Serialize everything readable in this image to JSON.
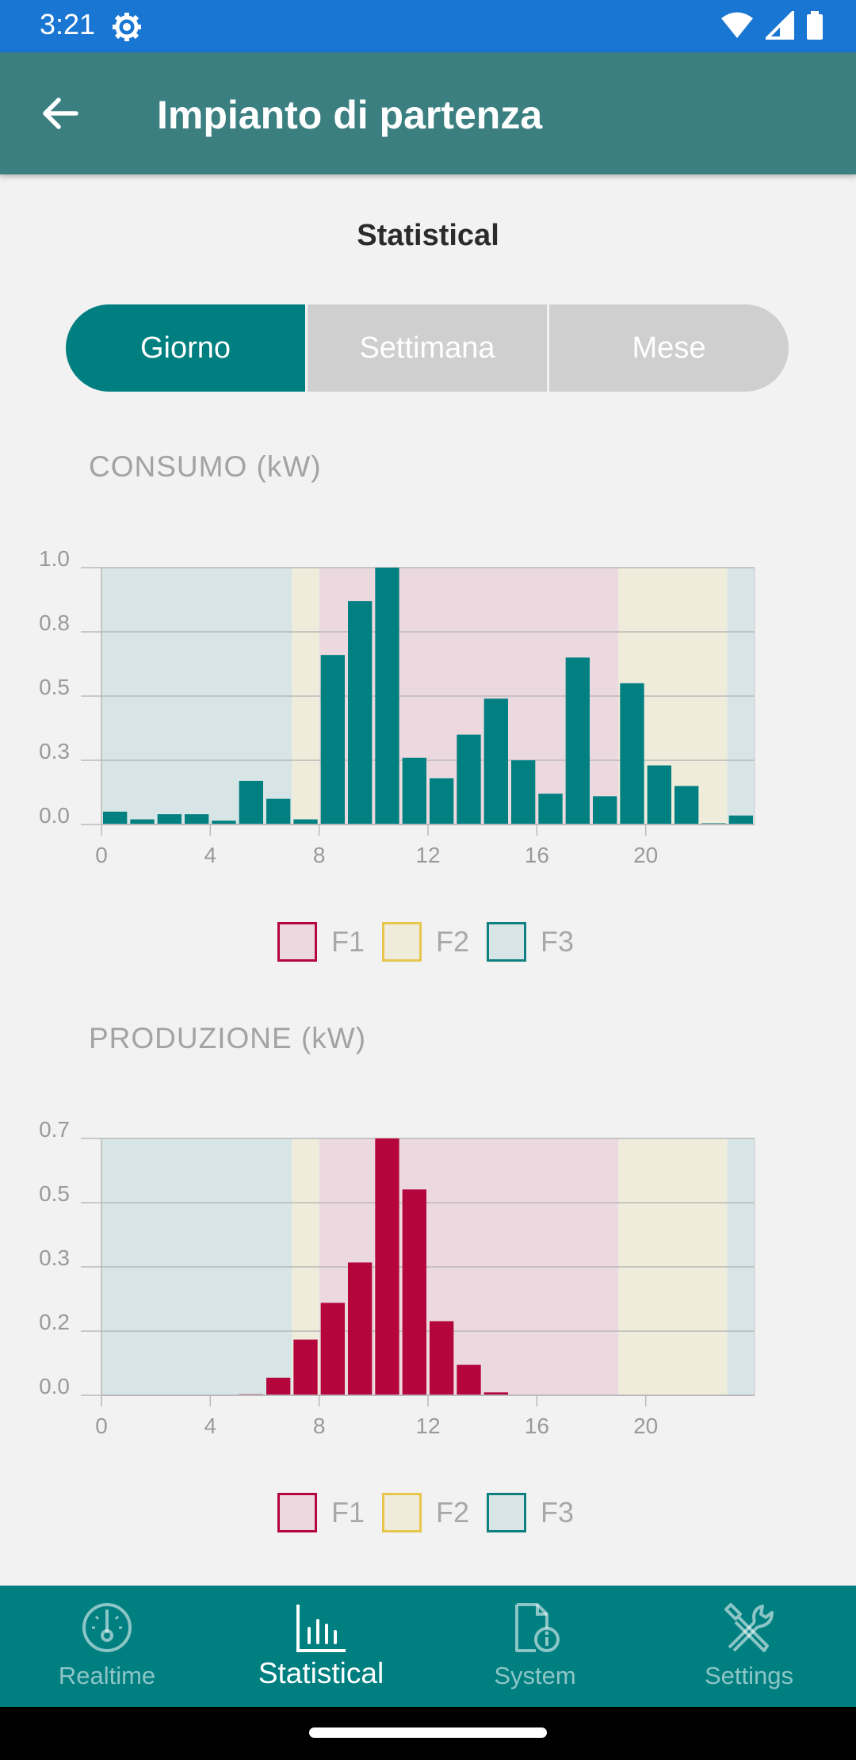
{
  "status": {
    "time": "3:21"
  },
  "header": {
    "title": "Impianto di partenza"
  },
  "section": {
    "title": "Statistical"
  },
  "segments": [
    "Giorno",
    "Settimana",
    "Mese"
  ],
  "selected_segment": "Giorno",
  "legend": [
    {
      "label": "F1",
      "fill": "#ecd9e0",
      "border": "#b5053d"
    },
    {
      "label": "F2",
      "fill": "#efecdc",
      "border": "#e7c64d"
    },
    {
      "label": "F3",
      "fill": "#d8e5e6",
      "border": "#0f8080"
    }
  ],
  "charts": [
    {
      "title": "CONSUMO (kW)"
    },
    {
      "title": "PRODUZIONE (kW)"
    }
  ],
  "nav": [
    {
      "label": "Realtime",
      "icon": "gauge-icon"
    },
    {
      "label": "Statistical",
      "icon": "bar-chart-icon"
    },
    {
      "label": "System",
      "icon": "document-info-icon"
    },
    {
      "label": "Settings",
      "icon": "tools-icon"
    }
  ],
  "active_nav": "Statistical",
  "chart_data": [
    {
      "type": "bar",
      "title": "CONSUMO (kW)",
      "x": [
        0,
        1,
        2,
        3,
        4,
        5,
        6,
        7,
        8,
        9,
        10,
        11,
        12,
        13,
        14,
        15,
        16,
        17,
        18,
        19,
        20,
        21,
        22,
        23
      ],
      "values": [
        0.05,
        0.02,
        0.04,
        0.04,
        0.015,
        0.17,
        0.1,
        0.02,
        0.66,
        0.87,
        1.0,
        0.26,
        0.18,
        0.35,
        0.49,
        0.25,
        0.12,
        0.65,
        0.11,
        0.55,
        0.23,
        0.15,
        0.005,
        0.035
      ],
      "color": "#008080",
      "ylim": [
        0,
        1.0
      ],
      "xlim": [
        0,
        24
      ],
      "yticks": [
        0,
        0.25,
        0.5,
        0.75,
        1.0
      ],
      "ytick_labels": [
        "0.0",
        "0.3",
        "0.5",
        "0.8",
        "1.0"
      ],
      "xticks": [
        0,
        4,
        8,
        12,
        16,
        20
      ],
      "xtick_labels": [
        "0",
        "4",
        "8",
        "12",
        "16",
        "20"
      ],
      "grid": true,
      "legend": [
        "F1",
        "F2",
        "F3"
      ],
      "bands": [
        {
          "from": 0,
          "to": 7,
          "class": "F3"
        },
        {
          "from": 7,
          "to": 8,
          "class": "F2"
        },
        {
          "from": 8,
          "to": 19,
          "class": "F1"
        },
        {
          "from": 19,
          "to": 23,
          "class": "F2"
        },
        {
          "from": 23,
          "to": 24,
          "class": "F3"
        }
      ]
    },
    {
      "type": "bar",
      "title": "PRODUZIONE (kW)",
      "x": [
        0,
        1,
        2,
        3,
        4,
        5,
        6,
        7,
        8,
        9,
        10,
        11,
        12,
        13,
        14,
        15,
        16,
        17,
        18,
        19,
        20,
        21,
        22,
        23
      ],
      "values": [
        0,
        0.002,
        0.002,
        0.002,
        0.002,
        0.003,
        0.048,
        0.152,
        0.252,
        0.362,
        0.7,
        0.561,
        0.202,
        0.083,
        0.008,
        0.002,
        0.002,
        0.002,
        0.002,
        0.002,
        0.002,
        0.002,
        0.002,
        0
      ],
      "color": "#b5053d",
      "ylim": [
        0,
        0.7
      ],
      "xlim": [
        0,
        24
      ],
      "yticks": [
        0,
        0.175,
        0.35,
        0.525,
        0.7
      ],
      "ytick_labels": [
        "0.0",
        "0.2",
        "0.3",
        "0.5",
        "0.7"
      ],
      "xticks": [
        0,
        4,
        8,
        12,
        16,
        20
      ],
      "xtick_labels": [
        "0",
        "4",
        "8",
        "12",
        "16",
        "20"
      ],
      "grid": true,
      "legend": [
        "F1",
        "F2",
        "F3"
      ],
      "bands": [
        {
          "from": 0,
          "to": 7,
          "class": "F3"
        },
        {
          "from": 7,
          "to": 8,
          "class": "F2"
        },
        {
          "from": 8,
          "to": 19,
          "class": "F1"
        },
        {
          "from": 19,
          "to": 23,
          "class": "F2"
        },
        {
          "from": 23,
          "to": 24,
          "class": "F3"
        }
      ]
    }
  ]
}
